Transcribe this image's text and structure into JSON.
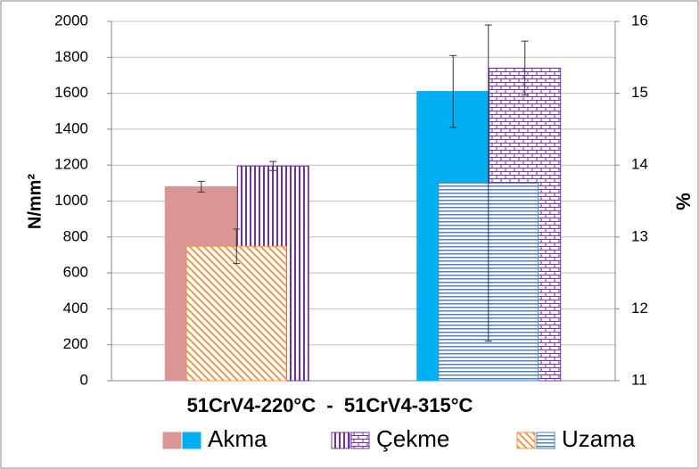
{
  "chart_data": {
    "type": "bar",
    "categories": [
      null,
      null
    ],
    "x_label": "51CrV4-220°C  -  51CrV4-315°C",
    "y_label": "N/mm²",
    "y2_label": "%",
    "series": [
      {
        "name": "Akma",
        "colors": [
          "#d99694",
          "#00b0f0"
        ],
        "values": [
          1080,
          1610
        ],
        "errors": [
          30,
          200
        ]
      },
      {
        "name": "Çekme",
        "color": "#7030a0",
        "values": [
          1195,
          1740
        ],
        "errors": [
          25,
          150
        ]
      },
      {
        "name": "Uzama",
        "colors": [
          "#f79646",
          "#4f81bd"
        ],
        "axis": "y2",
        "values": [
          12.87,
          13.75
        ],
        "errors": [
          0.24,
          2.2
        ]
      }
    ],
    "ylim": [
      0,
      2000
    ],
    "yticks": [
      0,
      200,
      400,
      600,
      800,
      1000,
      1200,
      1400,
      1600,
      1800,
      2000
    ],
    "y2lim": [
      11,
      16
    ],
    "y2ticks": [
      11,
      12,
      13,
      14,
      15,
      16
    ],
    "grid": true,
    "legend": "bottom"
  }
}
